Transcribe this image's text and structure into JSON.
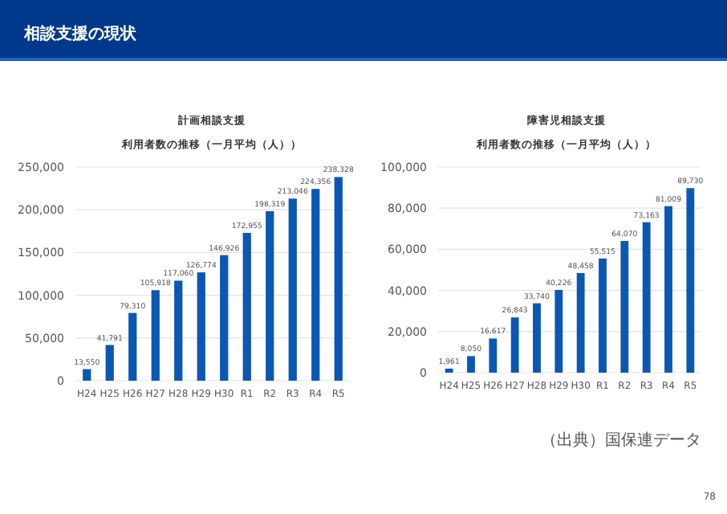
{
  "chart_data": [
    {
      "type": "bar",
      "title": "計画相談支援",
      "subtitle": "利用者数の推移（一月平均（人））",
      "annotations": [
        "相談支援の現状"
      ],
      "categories": [
        "H24",
        "H25",
        "H26",
        "H27",
        "H28",
        "H29",
        "H30",
        "R1",
        "R2",
        "R3",
        "R4",
        "R5"
      ],
      "values": [
        13550,
        41791,
        79310,
        105918,
        117060,
        126774,
        146926,
        172955,
        198319,
        213046,
        224356,
        238328
      ],
      "value_labels": [
        "13,550",
        "41,791",
        "79,310",
        "105,918",
        "117,060",
        "126,774",
        "146,926",
        "172,955",
        "198,319",
        "213,046",
        "224,356",
        "238,328"
      ],
      "color": "#0b57b4",
      "grid": "y",
      "ylim": [
        0,
        250000
      ],
      "yticks": [
        0,
        {
          "value": 50000,
          "label": "50,000"
        },
        {
          "value": 100000,
          "label": "100,000"
        },
        {
          "value": 150000,
          "label": "150,000"
        },
        {
          "value": 200000,
          "label": "200,000"
        },
        {
          "value": 250000,
          "label": "250,000"
        }
      ]
    },
    {
      "type": "bar",
      "title": "障害児相談支援",
      "subtitle": "利用者数の推移（一月平均（人））",
      "annotations": [
        "（出典）国保連データ",
        "78"
      ],
      "categories": [
        "H24",
        "H25",
        "H26",
        "H27",
        "H28",
        "H29",
        "H30",
        "R1",
        "R2",
        "R3",
        "R4",
        "R5"
      ],
      "values": [
        1961,
        8050,
        16617,
        26843,
        33740,
        40226,
        48458,
        55515,
        64070,
        73163,
        81009,
        89730
      ],
      "value_labels": [
        "1,961",
        "8,050",
        "16,617",
        "26,843",
        "33,740",
        "40,226",
        "48,458",
        "55,515",
        "64,070",
        "73,163",
        "81,009",
        "89,730"
      ],
      "color": "#0b57b4",
      "grid": "y",
      "ylim": [
        0,
        100000
      ],
      "yticks": [
        0,
        {
          "value": 20000,
          "label": "20,000"
        },
        {
          "value": 40000,
          "label": "40,000"
        },
        {
          "value": 60000,
          "label": "60,000"
        },
        {
          "value": 80000,
          "label": "80,000"
        },
        {
          "value": 100000,
          "label": "100,000"
        }
      ]
    }
  ]
}
